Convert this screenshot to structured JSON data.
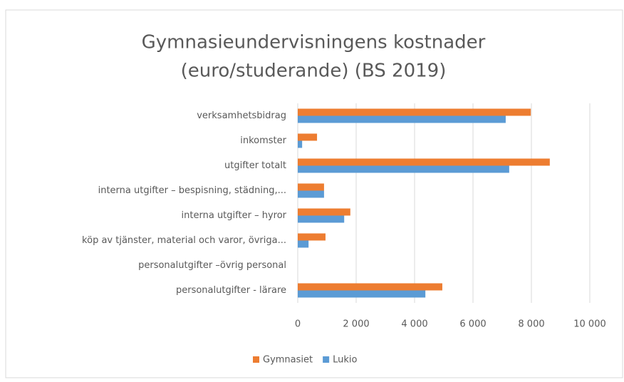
{
  "chart_data": {
    "type": "hbar",
    "title": [
      "Gymnasieundervisningens kostnader",
      "(euro/studerande) (BS 2019)"
    ],
    "categories": [
      "verksamhetsbidrag",
      "inkomster",
      "utgifter totalt",
      "interna utgifter – bespisning, städning,...",
      "interna utgifter – hyror",
      "köp av tjänster, material och varor, övriga...",
      "personalutgifter –övrig personal",
      "personalutgifter - lärare"
    ],
    "series": [
      {
        "name": "Gymnasiet",
        "color": "#ed7d31",
        "values": [
          7980,
          660,
          8630,
          900,
          1800,
          950,
          0,
          4950
        ]
      },
      {
        "name": "Lukio",
        "color": "#5b9bd5",
        "values": [
          7120,
          150,
          7240,
          900,
          1590,
          370,
          0,
          4370
        ]
      }
    ],
    "xlim": [
      0,
      10000
    ],
    "xticks": [
      0,
      {
        "value": 2000,
        "label": "2 000"
      },
      {
        "value": 4000,
        "label": "4 000"
      },
      {
        "value": 6000,
        "label": "6 000"
      },
      {
        "value": 8000,
        "label": "8 000"
      },
      {
        "value": 10000,
        "label": "10 000"
      }
    ],
    "grid": true,
    "legend": "bottom"
  }
}
